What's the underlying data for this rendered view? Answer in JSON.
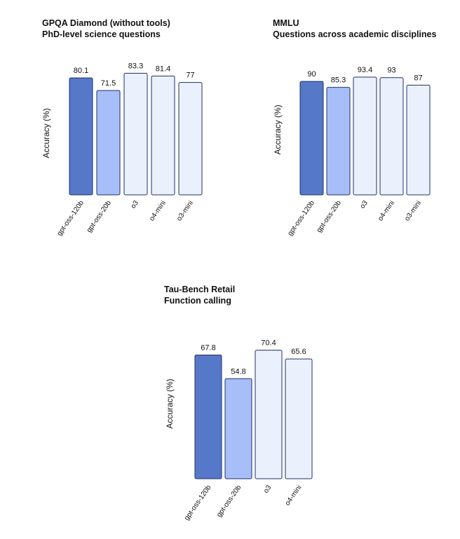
{
  "colors": {
    "gpt-oss-120b": "#5578c8",
    "gpt-oss-20b": "#a7bef8",
    "o3": "#ebf0fd",
    "o4-mini": "#ebf0fd",
    "o3-mini": "#ebf0fd",
    "stroke": "#1f3266"
  },
  "chart_data": [
    {
      "type": "bar",
      "title": "GPQA Diamond (without tools)",
      "subtitle": "PhD-level science questions",
      "ylabel": "Accuracy (%)",
      "categories": [
        "gpt-oss-120b",
        "gpt-oss-20b",
        "o3",
        "o4-mini",
        "o3-mini"
      ],
      "values": [
        80.1,
        71.5,
        83.3,
        81.4,
        77
      ],
      "value_labels": [
        "80.1",
        "71.5",
        "83.3",
        "81.4",
        "77"
      ]
    },
    {
      "type": "bar",
      "title": "MMLU",
      "subtitle": "Questions across academic disciplines",
      "ylabel": "Accuracy (%)",
      "categories": [
        "gpt-oss-120b",
        "gpt-oss-20b",
        "o3",
        "o4-mini",
        "o3-mini"
      ],
      "values": [
        90,
        85.3,
        93.4,
        93,
        87
      ],
      "value_labels": [
        "90",
        "85.3",
        "93.4",
        "93",
        "87"
      ]
    },
    {
      "type": "bar",
      "title": "Tau-Bench Retail",
      "subtitle": "Function calling",
      "ylabel": "Accuracy (%)",
      "categories": [
        "gpt-oss-120b",
        "gpt-oss-20b",
        "o3",
        "o4-mini"
      ],
      "values": [
        67.8,
        54.8,
        70.4,
        65.6
      ],
      "value_labels": [
        "67.8",
        "54.8",
        "70.4",
        "65.6"
      ]
    }
  ]
}
